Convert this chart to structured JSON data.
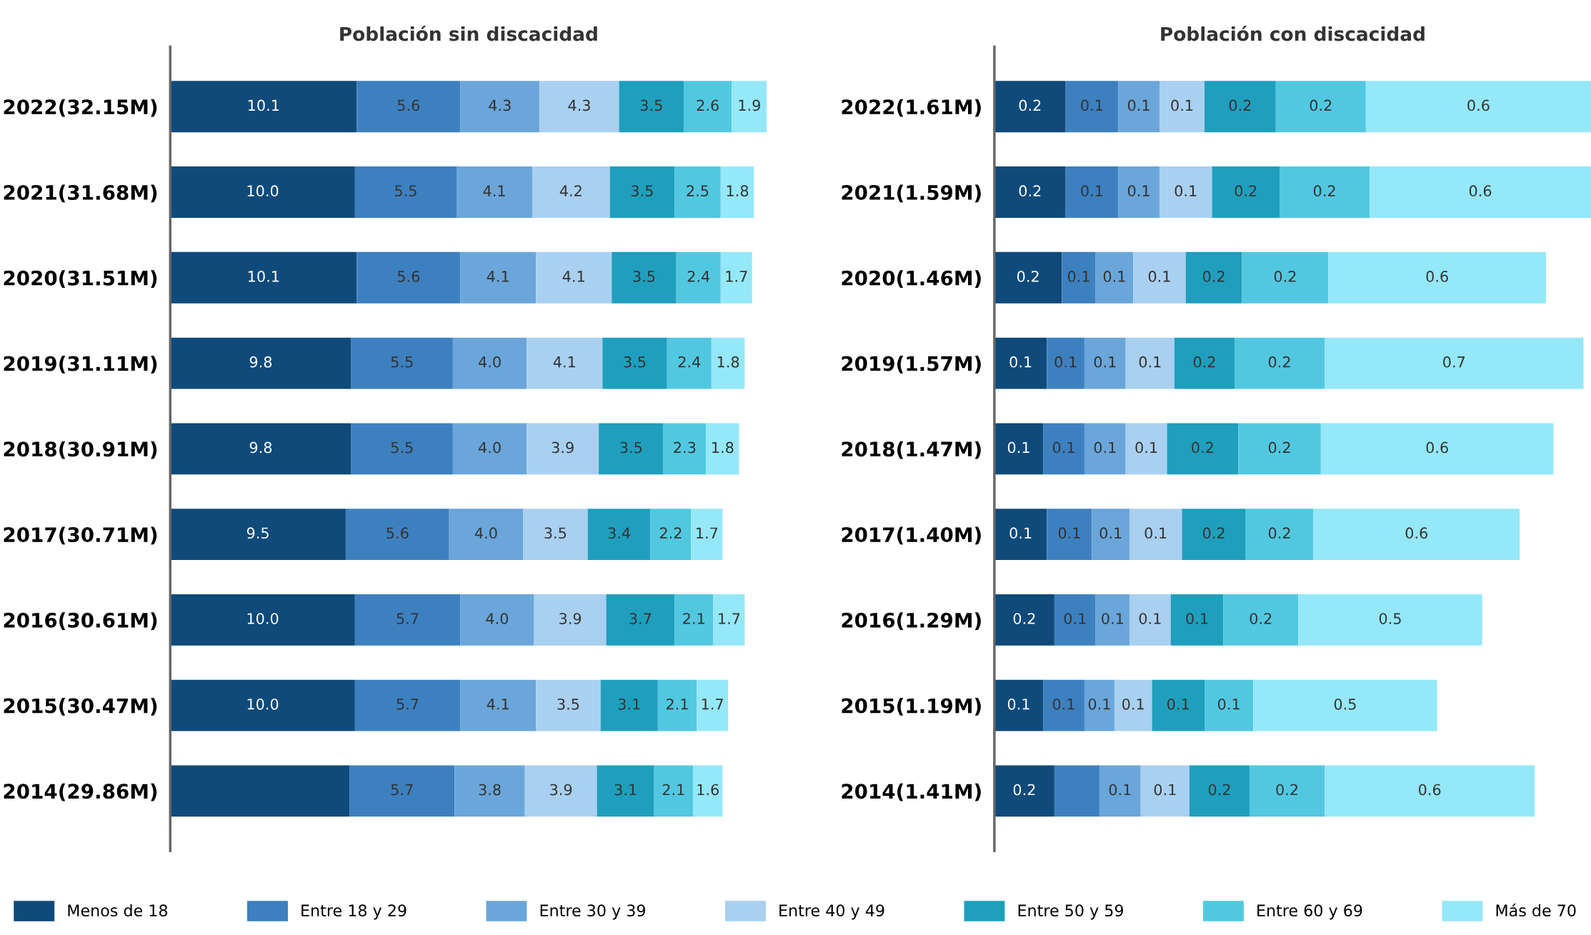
{
  "chart_data": [
    {
      "type": "bar",
      "title": "Población sin discacidad",
      "orientation": "horizontal",
      "stacked": true,
      "tick_labels": "y",
      "legend": "bottom",
      "grid": false,
      "categories": [
        "2022(32.15M)",
        "2021(31.68M)",
        "2020(31.51M)",
        "2019(31.11M)",
        "2018(30.91M)",
        "2017(30.71M)",
        "2016(30.61M)",
        "2015(30.47M)",
        "2014(29.86M)"
      ],
      "series": [
        {
          "name": "Menos de 18",
          "color": "#0f4a7a",
          "values": [
            10.1,
            10.0,
            10.1,
            9.8,
            9.8,
            9.5,
            10.0,
            10.0,
            9.7
          ],
          "value_labels": [
            "10.1",
            "10.0",
            "10.1",
            "9.8",
            "9.8",
            "9.5",
            "10.0",
            "10.0",
            null
          ]
        },
        {
          "name": "Entre 18 y 29",
          "color": "#3d80c0",
          "values": [
            5.6,
            5.5,
            5.6,
            5.5,
            5.5,
            5.6,
            5.7,
            5.7,
            5.7
          ],
          "value_labels": [
            "5.6",
            "5.5",
            "5.6",
            "5.5",
            "5.5",
            "5.6",
            "5.7",
            "5.7",
            "5.7"
          ]
        },
        {
          "name": "Entre 30 y 39",
          "color": "#6aa6da",
          "values": [
            4.3,
            4.1,
            4.1,
            4.0,
            4.0,
            4.0,
            4.0,
            4.1,
            3.8
          ],
          "value_labels": [
            "4.3",
            "4.1",
            "4.1",
            "4.0",
            "4.0",
            "4.0",
            "4.0",
            "4.1",
            "3.8"
          ]
        },
        {
          "name": "Entre 40 y 49",
          "color": "#a9d0f0",
          "values": [
            4.3,
            4.2,
            4.1,
            4.1,
            3.9,
            3.5,
            3.9,
            3.5,
            3.9
          ],
          "value_labels": [
            "4.3",
            "4.2",
            "4.1",
            "4.1",
            "3.9",
            "3.5",
            "3.9",
            "3.5",
            "3.9"
          ]
        },
        {
          "name": "Entre 50 y 59",
          "color": "#1f9fbd",
          "values": [
            3.5,
            3.5,
            3.5,
            3.5,
            3.5,
            3.4,
            3.7,
            3.1,
            3.1
          ],
          "value_labels": [
            "3.5",
            "3.5",
            "3.5",
            "3.5",
            "3.5",
            "3.4",
            "3.7",
            "3.1",
            "3.1"
          ]
        },
        {
          "name": "Entre 60 y 69",
          "color": "#52c8e0",
          "values": [
            2.6,
            2.5,
            2.4,
            2.4,
            2.3,
            2.2,
            2.1,
            2.1,
            2.1
          ],
          "value_labels": [
            "2.6",
            "2.5",
            "2.4",
            "2.4",
            "2.3",
            "2.2",
            "2.1",
            "2.1",
            "2.1"
          ]
        },
        {
          "name": "Más de 70",
          "color": "#95e8f8",
          "values": [
            1.9,
            1.8,
            1.7,
            1.8,
            1.8,
            1.7,
            1.7,
            1.7,
            1.6
          ],
          "value_labels": [
            "1.9",
            "1.8",
            "1.7",
            "1.8",
            "1.8",
            "1.7",
            "1.7",
            "1.7",
            "1.6"
          ]
        }
      ]
    },
    {
      "type": "bar",
      "title": "Población con discacidad",
      "orientation": "horizontal",
      "stacked": true,
      "tick_labels": "y",
      "grid": false,
      "categories": [
        "2022(1.61M)",
        "2021(1.59M)",
        "2020(1.46M)",
        "2019(1.57M)",
        "2018(1.47M)",
        "2017(1.40M)",
        "2016(1.29M)",
        "2015(1.19M)",
        "2014(1.41M)"
      ],
      "series": [
        {
          "color": "#0f4a7a",
          "values": [
            0.19,
            0.19,
            0.18,
            0.14,
            0.13,
            0.14,
            0.16,
            0.13,
            0.16
          ],
          "value_labels": [
            "0.2",
            "0.2",
            "0.2",
            "0.1",
            "0.1",
            "0.1",
            "0.2",
            "0.1",
            "0.2"
          ]
        },
        {
          "color": "#3d80c0",
          "values": [
            0.14,
            0.14,
            0.09,
            0.1,
            0.11,
            0.12,
            0.11,
            0.11,
            0.12
          ],
          "value_labels": [
            "0.1",
            "0.1",
            "0.1",
            "0.1",
            "0.1",
            "0.1",
            "0.1",
            "0.1",
            null
          ]
        },
        {
          "color": "#6aa6da",
          "values": [
            0.11,
            0.11,
            0.1,
            0.11,
            0.11,
            0.1,
            0.09,
            0.08,
            0.11
          ],
          "value_labels": [
            "0.1",
            "0.1",
            "0.1",
            "0.1",
            "0.1",
            "0.1",
            "0.1",
            "0.1",
            "0.1"
          ]
        },
        {
          "color": "#a9d0f0",
          "values": [
            0.12,
            0.14,
            0.14,
            0.13,
            0.11,
            0.14,
            0.11,
            0.1,
            0.13
          ],
          "value_labels": [
            "0.1",
            "0.1",
            "0.1",
            "0.1",
            "0.1",
            "0.1",
            "0.1",
            "0.1",
            "0.1"
          ]
        },
        {
          "color": "#1f9fbd",
          "values": [
            0.19,
            0.18,
            0.15,
            0.16,
            0.19,
            0.17,
            0.14,
            0.14,
            0.16
          ],
          "value_labels": [
            "0.2",
            "0.2",
            "0.2",
            "0.2",
            "0.2",
            "0.2",
            "0.1",
            "0.1",
            "0.2"
          ]
        },
        {
          "color": "#52c8e0",
          "values": [
            0.24,
            0.24,
            0.23,
            0.24,
            0.22,
            0.18,
            0.2,
            0.13,
            0.2
          ],
          "value_labels": [
            "0.2",
            "0.2",
            "0.2",
            "0.2",
            "0.2",
            "0.2",
            "0.2",
            "0.1",
            "0.2"
          ]
        },
        {
          "color": "#95e8f8",
          "values": [
            0.6,
            0.59,
            0.58,
            0.69,
            0.62,
            0.55,
            0.49,
            0.49,
            0.56
          ],
          "value_labels": [
            "0.6",
            "0.6",
            "0.6",
            "0.7",
            "0.6",
            "0.6",
            "0.5",
            "0.5",
            "0.6"
          ]
        }
      ]
    }
  ]
}
